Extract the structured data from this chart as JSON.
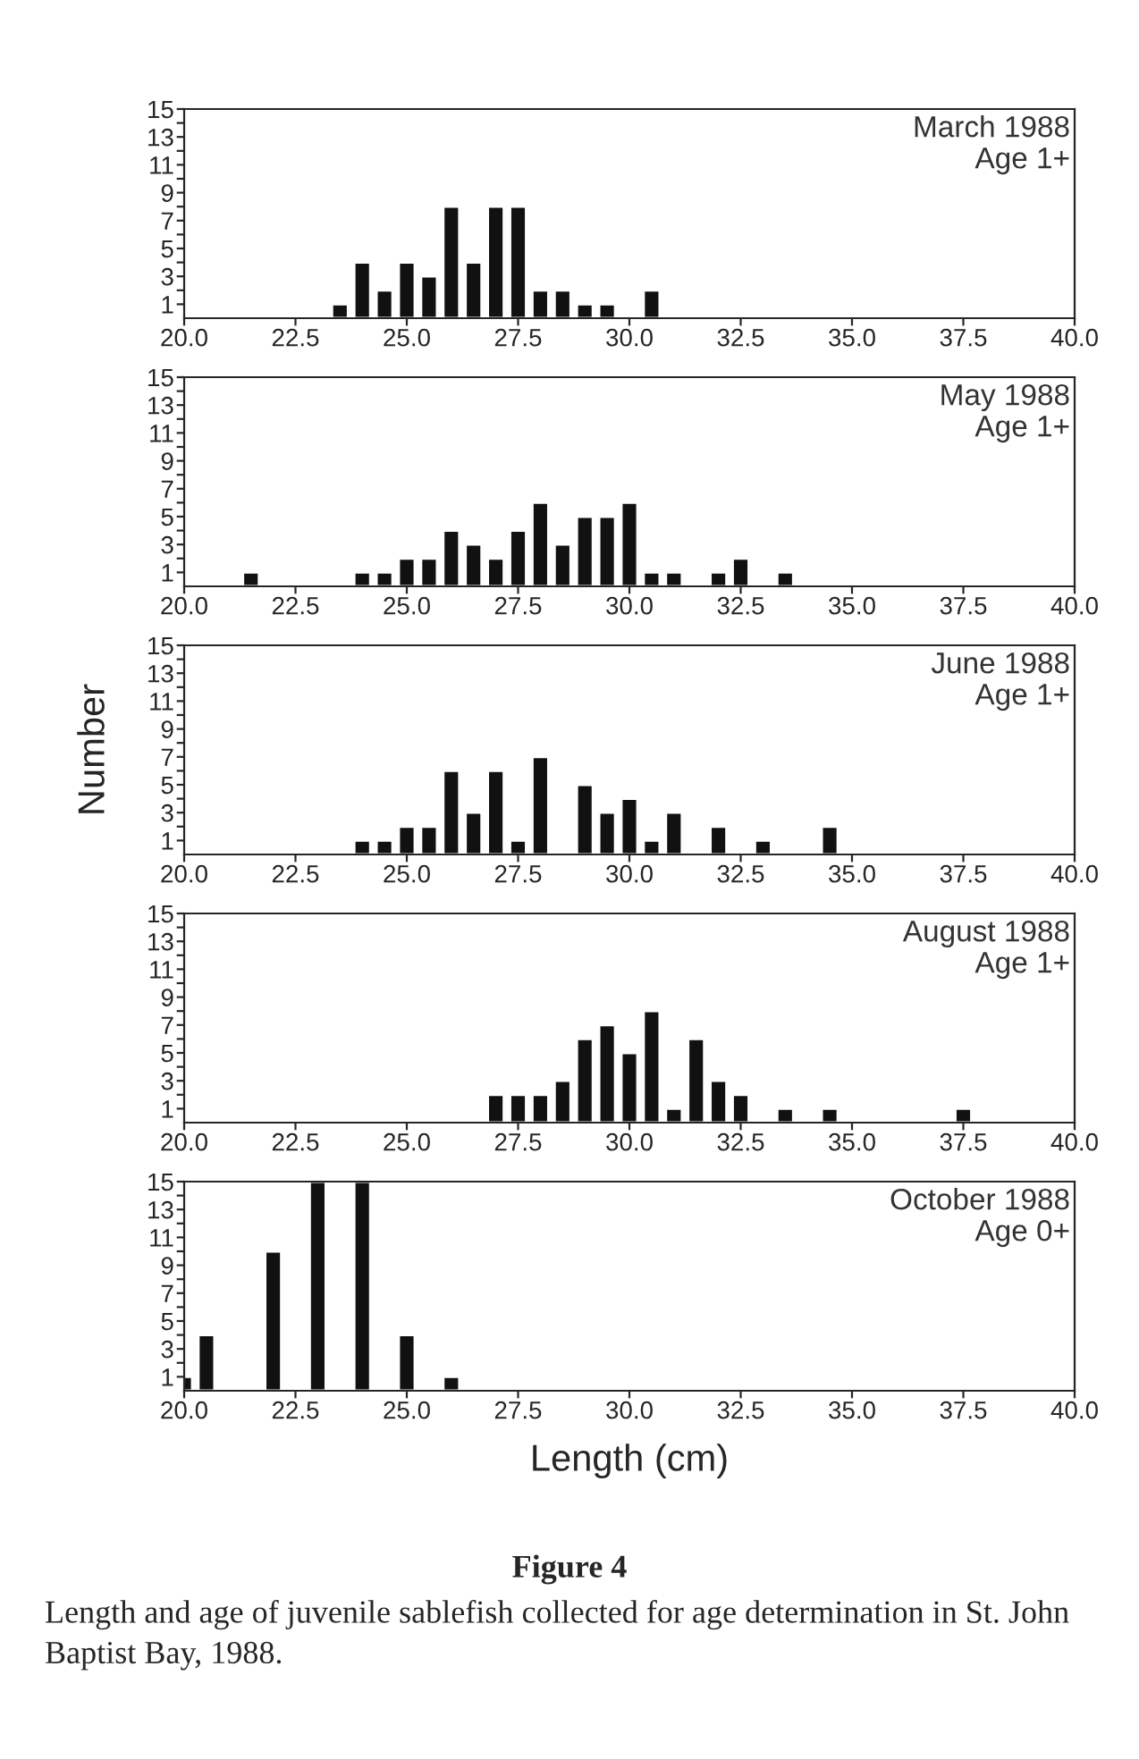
{
  "chart_data": [
    {
      "type": "bar",
      "annotations": [
        "March 1988",
        "Age 1+"
      ],
      "x": [
        23.5,
        24,
        24.5,
        25,
        25.5,
        26,
        26.5,
        27,
        27.5,
        28,
        28.5,
        29,
        29.5,
        30.5
      ],
      "values": [
        1,
        4,
        2,
        4,
        3,
        8,
        4,
        8,
        8,
        2,
        2,
        1,
        1,
        2
      ],
      "color": "#111111",
      "xlim": [
        20,
        40
      ],
      "xticks": [
        {
          "value": 20,
          "label": "20.0"
        },
        {
          "value": 22.5,
          "label": "22.5"
        },
        {
          "value": 25,
          "label": "25.0"
        },
        {
          "value": 27.5,
          "label": "27.5"
        },
        {
          "value": 30,
          "label": "30.0"
        },
        {
          "value": 32.5,
          "label": "32.5"
        },
        {
          "value": 35,
          "label": "35.0"
        },
        {
          "value": 37.5,
          "label": "37.5"
        },
        {
          "value": 40,
          "label": "40.0"
        }
      ],
      "ylim": [
        0,
        15
      ],
      "yticks": [
        1,
        {
          "value": 2,
          "label": null
        },
        3,
        {
          "value": 4,
          "label": null
        },
        5,
        {
          "value": 6,
          "label": null
        },
        7,
        {
          "value": 8,
          "label": null
        },
        9,
        {
          "value": 10,
          "label": null
        },
        11,
        {
          "value": 12,
          "label": null
        },
        13,
        {
          "value": 14,
          "label": null
        },
        15
      ],
      "grid": false
    },
    {
      "type": "bar",
      "annotations": [
        "May 1988",
        "Age 1+"
      ],
      "x": [
        21.5,
        24,
        24.5,
        25,
        25.5,
        26,
        26.5,
        27,
        27.5,
        28,
        28.5,
        29,
        29.5,
        30,
        30.5,
        31,
        32,
        32.5,
        33.5
      ],
      "values": [
        1,
        1,
        1,
        2,
        2,
        4,
        3,
        2,
        4,
        6,
        3,
        5,
        5,
        6,
        1,
        1,
        1,
        2,
        1
      ],
      "color": "#111111",
      "xlim": [
        20,
        40
      ],
      "xticks": [
        {
          "value": 20,
          "label": "20.0"
        },
        {
          "value": 22.5,
          "label": "22.5"
        },
        {
          "value": 25,
          "label": "25.0"
        },
        {
          "value": 27.5,
          "label": "27.5"
        },
        {
          "value": 30,
          "label": "30.0"
        },
        {
          "value": 32.5,
          "label": "32.5"
        },
        {
          "value": 35,
          "label": "35.0"
        },
        {
          "value": 37.5,
          "label": "37.5"
        },
        {
          "value": 40,
          "label": "40.0"
        }
      ],
      "ylim": [
        0,
        15
      ],
      "yticks": [
        1,
        {
          "value": 2,
          "label": null
        },
        3,
        {
          "value": 4,
          "label": null
        },
        5,
        {
          "value": 6,
          "label": null
        },
        7,
        {
          "value": 8,
          "label": null
        },
        9,
        {
          "value": 10,
          "label": null
        },
        11,
        {
          "value": 12,
          "label": null
        },
        13,
        {
          "value": 14,
          "label": null
        },
        15
      ],
      "grid": false
    },
    {
      "type": "bar",
      "ylabel": "Number",
      "annotations": [
        "June 1988",
        "Age 1+"
      ],
      "x": [
        24,
        24.5,
        25,
        25.5,
        26,
        26.5,
        27,
        27.5,
        28,
        29,
        29.5,
        30,
        30.5,
        31,
        32,
        33,
        34.5
      ],
      "values": [
        1,
        1,
        2,
        2,
        6,
        3,
        6,
        1,
        7,
        5,
        3,
        4,
        1,
        3,
        2,
        1,
        2
      ],
      "color": "#111111",
      "xlim": [
        20,
        40
      ],
      "xticks": [
        {
          "value": 20,
          "label": "20.0"
        },
        {
          "value": 22.5,
          "label": "22.5"
        },
        {
          "value": 25,
          "label": "25.0"
        },
        {
          "value": 27.5,
          "label": "27.5"
        },
        {
          "value": 30,
          "label": "30.0"
        },
        {
          "value": 32.5,
          "label": "32.5"
        },
        {
          "value": 35,
          "label": "35.0"
        },
        {
          "value": 37.5,
          "label": "37.5"
        },
        {
          "value": 40,
          "label": "40.0"
        }
      ],
      "ylim": [
        0,
        15
      ],
      "yticks": [
        1,
        {
          "value": 2,
          "label": null
        },
        3,
        {
          "value": 4,
          "label": null
        },
        5,
        {
          "value": 6,
          "label": null
        },
        7,
        {
          "value": 8,
          "label": null
        },
        9,
        {
          "value": 10,
          "label": null
        },
        11,
        {
          "value": 12,
          "label": null
        },
        13,
        {
          "value": 14,
          "label": null
        },
        15
      ],
      "grid": false
    },
    {
      "type": "bar",
      "annotations": [
        "August 1988",
        "Age 1+"
      ],
      "x": [
        27,
        27.5,
        28,
        28.5,
        29,
        29.5,
        30,
        30.5,
        31,
        31.5,
        32,
        32.5,
        33.5,
        34.5,
        37.5
      ],
      "values": [
        2,
        2,
        2,
        3,
        6,
        7,
        5,
        8,
        1,
        6,
        3,
        2,
        1,
        1,
        1
      ],
      "color": "#111111",
      "xlim": [
        20,
        40
      ],
      "xticks": [
        {
          "value": 20,
          "label": "20.0"
        },
        {
          "value": 22.5,
          "label": "22.5"
        },
        {
          "value": 25,
          "label": "25.0"
        },
        {
          "value": 27.5,
          "label": "27.5"
        },
        {
          "value": 30,
          "label": "30.0"
        },
        {
          "value": 32.5,
          "label": "32.5"
        },
        {
          "value": 35,
          "label": "35.0"
        },
        {
          "value": 37.5,
          "label": "37.5"
        },
        {
          "value": 40,
          "label": "40.0"
        }
      ],
      "ylim": [
        0,
        15
      ],
      "yticks": [
        1,
        {
          "value": 2,
          "label": null
        },
        3,
        {
          "value": 4,
          "label": null
        },
        5,
        {
          "value": 6,
          "label": null
        },
        7,
        {
          "value": 8,
          "label": null
        },
        9,
        {
          "value": 10,
          "label": null
        },
        11,
        {
          "value": 12,
          "label": null
        },
        13,
        {
          "value": 14,
          "label": null
        },
        15
      ],
      "grid": false
    },
    {
      "type": "bar",
      "xlabel": "Length (cm)",
      "annotations": [
        "October 1988",
        "Age 0+",
        "Figure 4",
        "Length and age of juvenile sablefish collected for age determination in St. John Baptist Bay, 1988."
      ],
      "x": [
        20,
        20.5,
        22,
        23,
        24,
        25,
        26
      ],
      "values": [
        1,
        4,
        10,
        15,
        15,
        4,
        1
      ],
      "color": "#111111",
      "xlim": [
        20,
        40
      ],
      "xticks": [
        {
          "value": 20,
          "label": "20.0"
        },
        {
          "value": 22.5,
          "label": "22.5"
        },
        {
          "value": 25,
          "label": "25.0"
        },
        {
          "value": 27.5,
          "label": "27.5"
        },
        {
          "value": 30,
          "label": "30.0"
        },
        {
          "value": 32.5,
          "label": "32.5"
        },
        {
          "value": 35,
          "label": "35.0"
        },
        {
          "value": 37.5,
          "label": "37.5"
        },
        {
          "value": 40,
          "label": "40.0"
        }
      ],
      "ylim": [
        0,
        15
      ],
      "yticks": [
        1,
        {
          "value": 2,
          "label": null
        },
        3,
        {
          "value": 4,
          "label": null
        },
        5,
        {
          "value": 6,
          "label": null
        },
        7,
        {
          "value": 8,
          "label": null
        },
        9,
        {
          "value": 10,
          "label": null
        },
        11,
        {
          "value": 12,
          "label": null
        },
        13,
        {
          "value": 14,
          "label": null
        },
        15
      ],
      "grid": false
    }
  ]
}
